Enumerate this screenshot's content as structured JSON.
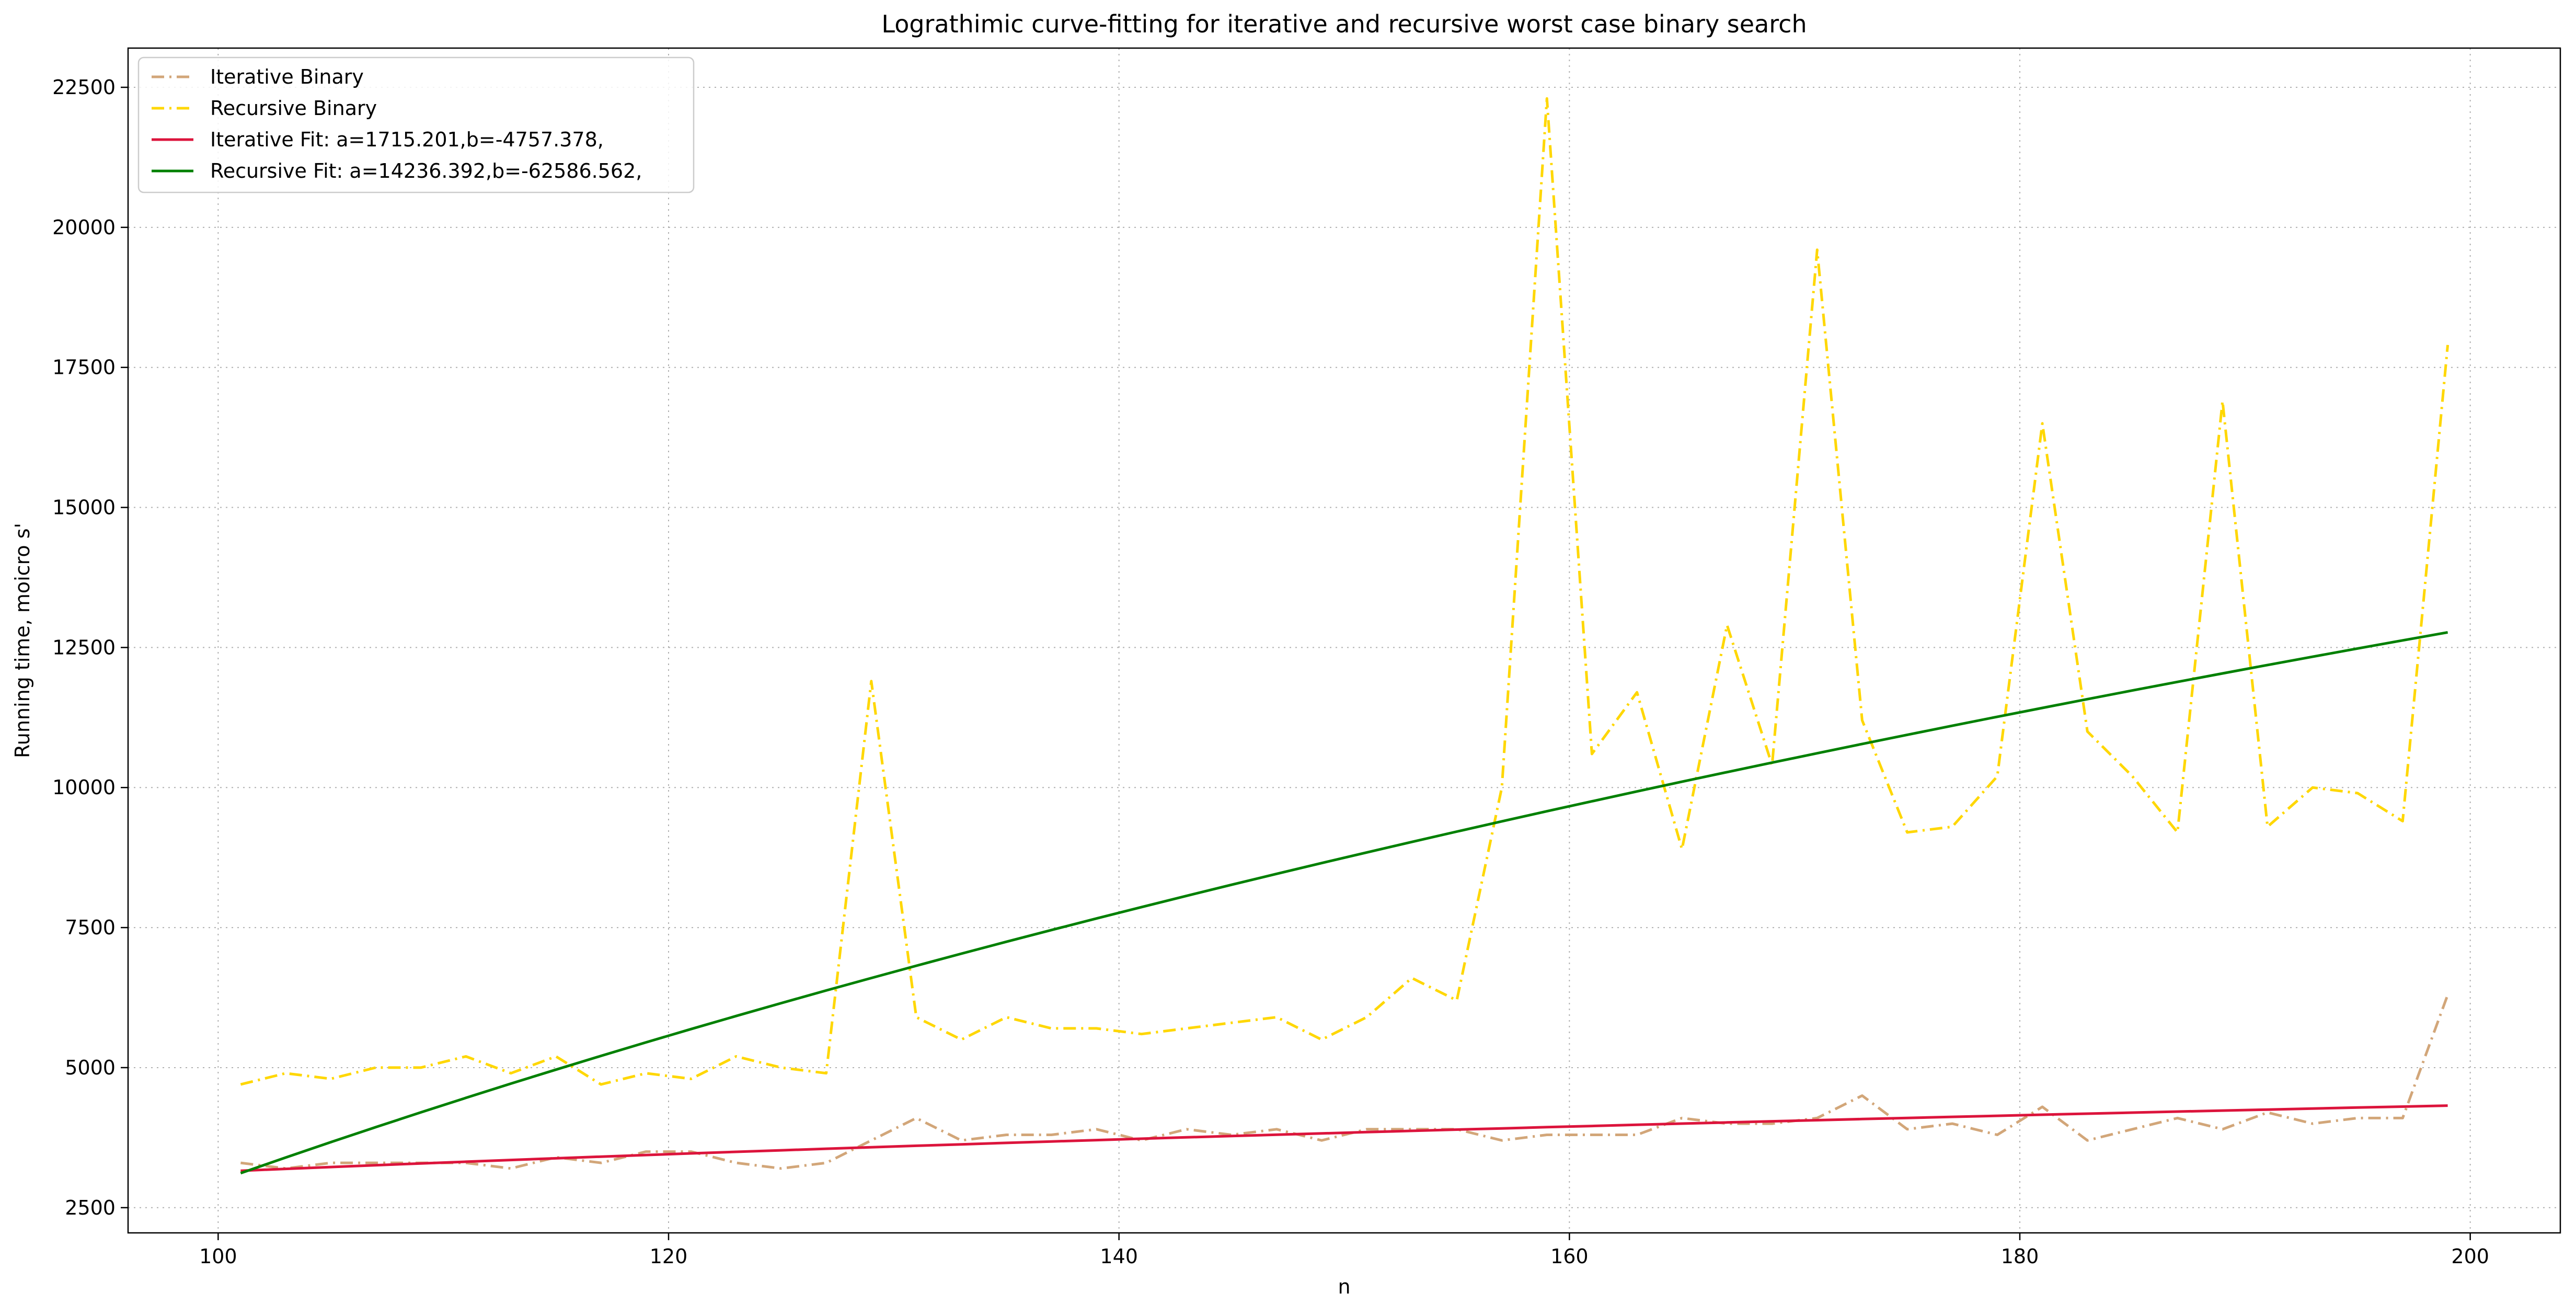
{
  "chart_data": {
    "type": "line",
    "title": "Lograthimic curve-fitting for iterative and recursive worst case binary search",
    "xlabel": "n",
    "ylabel": "Running time, moicro s'",
    "xlim": [
      96,
      204
    ],
    "ylim": [
      2050,
      23200
    ],
    "x_ticks": [
      100,
      120,
      140,
      160,
      180,
      200
    ],
    "y_ticks": [
      2500,
      5000,
      7500,
      10000,
      12500,
      15000,
      17500,
      20000,
      22500
    ],
    "x_tick_labels": [
      "100",
      "120",
      "140",
      "160",
      "180",
      "200"
    ],
    "y_tick_labels": [
      "2500",
      "5000",
      "7500",
      "10000",
      "12500",
      "15000",
      "17500",
      "20000",
      "22500"
    ],
    "grid": true,
    "legend_position": "top-left",
    "x": [
      101,
      103,
      105,
      107,
      109,
      111,
      113,
      115,
      117,
      119,
      121,
      123,
      125,
      127,
      129,
      131,
      133,
      135,
      137,
      139,
      141,
      143,
      145,
      147,
      149,
      151,
      153,
      155,
      157,
      159,
      161,
      163,
      165,
      167,
      169,
      171,
      173,
      175,
      177,
      179,
      181,
      183,
      185,
      187,
      189,
      191,
      193,
      195,
      197,
      199
    ],
    "series": [
      {
        "name": "Iterative Binary",
        "color": "#d2a679",
        "style": "dashdot",
        "values": [
          3300,
          3200,
          3300,
          3300,
          3300,
          3300,
          3200,
          3400,
          3300,
          3500,
          3500,
          3300,
          3200,
          3300,
          3700,
          4100,
          3700,
          3800,
          3800,
          3900,
          3700,
          3900,
          3800,
          3900,
          3700,
          3900,
          3900,
          3900,
          3700,
          3800,
          3800,
          3800,
          4100,
          4000,
          4000,
          4100,
          4500,
          3900,
          4000,
          3800,
          4300,
          3700,
          3900,
          4100,
          3900,
          4200,
          4000,
          4100,
          4100,
          6300
        ]
      },
      {
        "name": "Recursive Binary",
        "color": "#ffd700",
        "style": "dashdot",
        "values": [
          4700,
          4900,
          4800,
          5000,
          5000,
          5200,
          4900,
          5200,
          4700,
          4900,
          4800,
          5200,
          5000,
          4900,
          11900,
          5900,
          5500,
          5900,
          5700,
          5700,
          5600,
          5700,
          5800,
          5900,
          5500,
          5900,
          6600,
          6200,
          10000,
          22300,
          10600,
          11700,
          8900,
          12900,
          10400,
          19600,
          11200,
          9200,
          9300,
          10200,
          16500,
          11000,
          10200,
          9200,
          16900,
          9300,
          10000,
          9900,
          9400,
          17900
        ]
      },
      {
        "name": "Iterative Fit: a=1715.201,b=-4757.378,",
        "color": "#dc143c",
        "style": "solid",
        "fit": {
          "a": 1715.201,
          "b": -4757.378
        }
      },
      {
        "name": "Recursive Fit: a=14236.392,b=-62586.562,",
        "color": "#008000",
        "style": "solid",
        "fit": {
          "a": 14236.392,
          "b": -62586.562
        }
      }
    ]
  }
}
